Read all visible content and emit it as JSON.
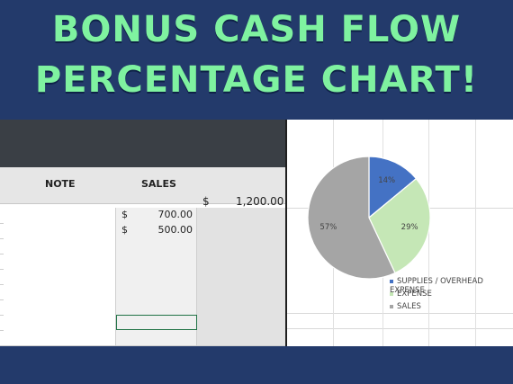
{
  "banner": {
    "line1": "BONUS CASH FLOW",
    "line2": "PERCENTAGE CHART!"
  },
  "sheet": {
    "headers": {
      "note": "NOTE",
      "sales": "SALES"
    },
    "total": {
      "currency": "$",
      "value": "1,200.00"
    },
    "rows": [
      {
        "currency": "$",
        "amount": "700.00"
      },
      {
        "currency": "$",
        "amount": "500.00"
      }
    ]
  },
  "chart_data": {
    "type": "pie",
    "slices": [
      {
        "label": "SUPPLIES / OVERHEAD EXPENSE",
        "value": 14,
        "display": "14%",
        "color": "#4472c4"
      },
      {
        "label": "EXPENSE",
        "value": 29,
        "display": "29%",
        "color": "#c5e7b6"
      },
      {
        "label": "SALES",
        "value": 57,
        "display": "57%",
        "color": "#a5a5a5"
      }
    ],
    "legend_position": "bottom-right"
  }
}
